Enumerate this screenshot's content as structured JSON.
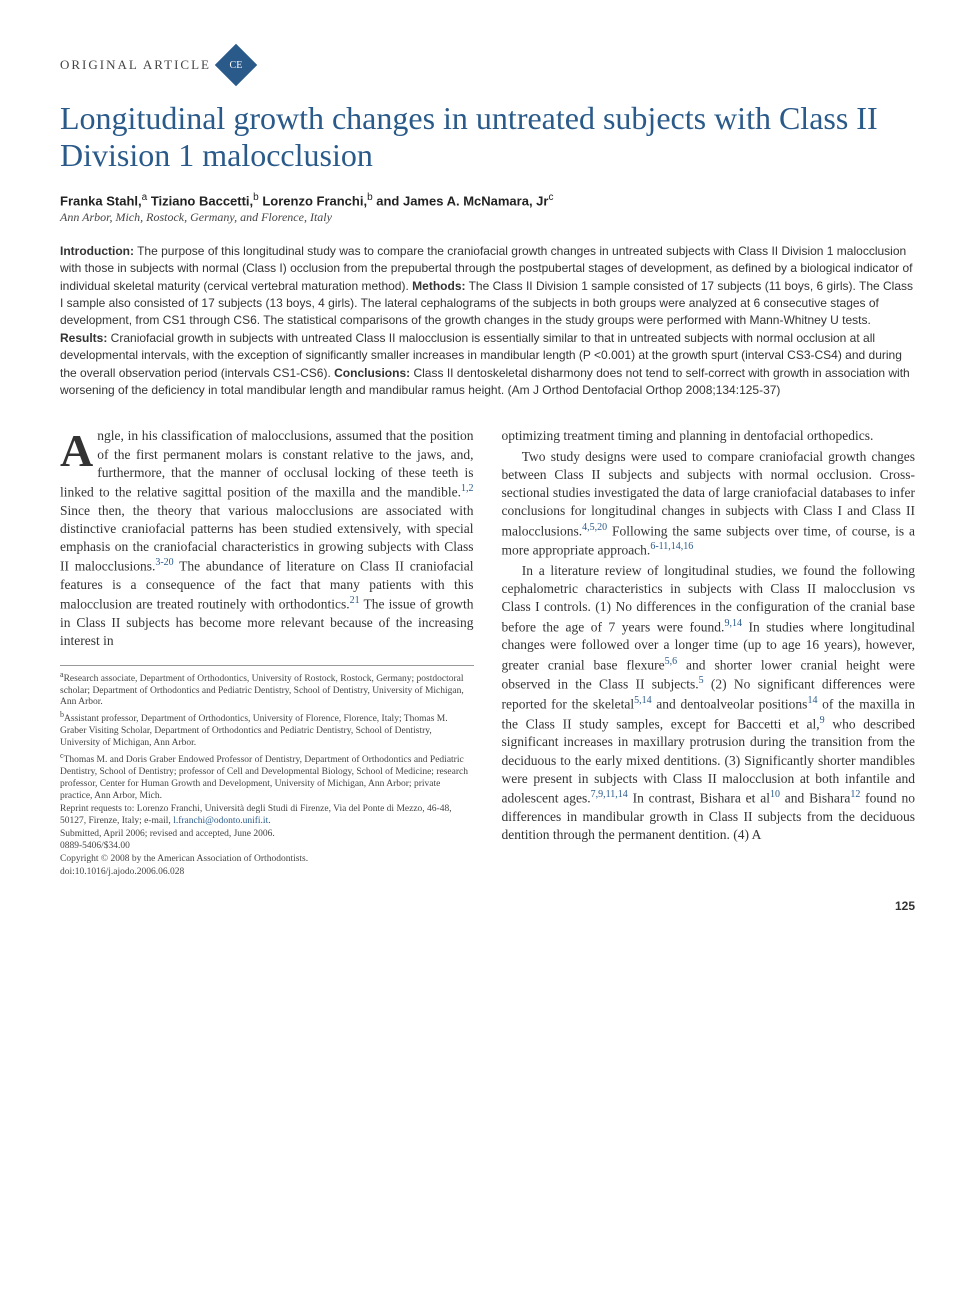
{
  "header": {
    "article_type": "ORIGINAL ARTICLE",
    "badge": "CE"
  },
  "title": "Longitudinal growth changes in untreated subjects with Class II Division 1 malocclusion",
  "authors_html": "Franka Stahl,<sup>a</sup> Tiziano Baccetti,<sup>b</sup> Lorenzo Franchi,<sup>b</sup> and James A. McNamara, Jr<sup>c</sup>",
  "affil_line": "Ann Arbor, Mich, Rostock, Germany, and Florence, Italy",
  "abstract": {
    "intro_label": "Introduction:",
    "intro": " The purpose of this longitudinal study was to compare the craniofacial growth changes in untreated subjects with Class II Division 1 malocclusion with those in subjects with normal (Class I) occlusion from the prepubertal through the postpubertal stages of development, as defined by a biological indicator of individual skeletal maturity (cervical vertebral maturation method). ",
    "methods_label": "Methods:",
    "methods": " The Class II Division 1 sample consisted of 17 subjects (11 boys, 6 girls). The Class I sample also consisted of 17 subjects (13 boys, 4 girls). The lateral cephalograms of the subjects in both groups were analyzed at 6 consecutive stages of development, from CS1 through CS6. The statistical comparisons of the growth changes in the study groups were performed with Mann-Whitney U tests. ",
    "results_label": "Results:",
    "results": " Craniofacial growth in subjects with untreated Class II malocclusion is essentially similar to that in untreated subjects with normal occlusion at all developmental intervals, with the exception of significantly smaller increases in mandibular length (P <0.001) at the growth spurt (interval CS3-CS4) and during the overall observation period (intervals CS1-CS6). ",
    "concl_label": "Conclusions:",
    "concl": " Class II dentoskeletal disharmony does not tend to self-correct with growth in association with worsening of the deficiency in total mandibular length and mandibular ramus height. ",
    "cite": "(Am J Orthod Dentofacial Orthop 2008;134:125-37)"
  },
  "body": {
    "p1_drop": "A",
    "p1": "ngle, in his classification of malocclusions, assumed that the position of the first permanent molars is constant relative to the jaws, and, furthermore, that the manner of occlusal locking of these teeth is linked to the relative sagittal position of the maxilla and the mandible.",
    "p1_ref1": "1,2",
    "p1b": " Since then, the theory that various malocclusions are associated with distinctive craniofacial patterns has been studied extensively, with special emphasis on the craniofacial characteristics in growing subjects with Class II malocclusions.",
    "p1_ref2": "3-20",
    "p1c": " The abundance of literature on Class II craniofacial features is a consequence of the fact that many patients with this malocclusion are treated routinely with orthodontics.",
    "p1_ref3": "21",
    "p1d": " The issue of growth in Class II subjects has become more relevant because of the increasing interest in ",
    "p2a": "optimizing treatment timing and planning in dentofacial orthopedics.",
    "p3a": "Two study designs were used to compare craniofacial growth changes between Class II subjects and subjects with normal occlusion. Cross-sectional studies investigated the data of large craniofacial databases to infer conclusions for longitudinal changes in subjects with Class I and Class II malocclusions.",
    "p3_ref1": "4,5,20",
    "p3b": " Following the same subjects over time, of course, is a more appropriate approach.",
    "p3_ref2": "6-11,14,16",
    "p4a": "In a literature review of longitudinal studies, we found the following cephalometric characteristics in subjects with Class II malocclusion vs Class I controls. (1) No differences in the configuration of the cranial base before the age of 7 years were found.",
    "p4_ref1": "9,14",
    "p4b": " In studies where longitudinal changes were followed over a longer time (up to age 16 years), however, greater cranial base flexure",
    "p4_ref2": "5,6",
    "p4c": " and shorter lower cranial height were observed in the Class II subjects.",
    "p4_ref3": "5",
    "p4d": " (2) No significant differences were reported for the skeletal",
    "p4_ref4": "5,14",
    "p4e": " and dentoalveolar positions",
    "p4_ref5": "14",
    "p4f": " of the maxilla in the Class II study samples, except for Baccetti et al,",
    "p4_ref6": "9",
    "p4g": " who described significant increases in maxillary protrusion during the transition from the deciduous to the early mixed dentitions. (3) Significantly shorter mandibles were present in subjects with Class II malocclusion at both infantile and adolescent ages.",
    "p4_ref7": "7,9,11,14",
    "p4h": " In contrast, Bishara et al",
    "p4_ref8": "10",
    "p4i": " and Bishara",
    "p4_ref9": "12",
    "p4j": " found no differences in mandibular growth in Class II subjects from the deciduous dentition through the permanent dentition. (4) A"
  },
  "footnotes": {
    "a": "Research associate, Department of Orthodontics, University of Rostock, Rostock, Germany; postdoctoral scholar; Department of Orthodontics and Pediatric Dentistry, School of Dentistry, University of Michigan, Ann Arbor.",
    "b": "Assistant professor, Department of Orthodontics, University of Florence, Florence, Italy; Thomas M. Graber Visiting Scholar, Department of Orthodontics and Pediatric Dentistry, School of Dentistry, University of Michigan, Ann Arbor.",
    "c": "Thomas M. and Doris Graber Endowed Professor of Dentistry, Department of Orthodontics and Pediatric Dentistry, School of Dentistry; professor of Cell and Developmental Biology, School of Medicine; research professor, Center for Human Growth and Development, University of Michigan, Ann Arbor; private practice, Ann Arbor, Mich.",
    "reprint": "Reprint requests to: Lorenzo Franchi, Università degli Studi di Firenze, Via del Ponte di Mezzo, 46-48, 50127, Firenze, Italy; e-mail, ",
    "email": "l.franchi@odonto.unifi.it",
    "reprint2": ".",
    "submitted": "Submitted, April 2006; revised and accepted, June 2006.",
    "issn": "0889-5406/$34.00",
    "copyright": "Copyright © 2008 by the American Association of Orthodontists.",
    "doi": "doi:10.1016/j.ajodo.2006.06.028"
  },
  "pagenum": "125",
  "colors": {
    "link": "#2a5a8a",
    "text": "#333333",
    "badge_bg": "#2a5a8a"
  }
}
